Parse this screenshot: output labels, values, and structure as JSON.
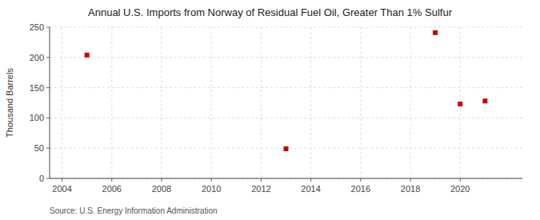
{
  "chart_data": {
    "type": "scatter",
    "title": "Annual U.S. Imports from Norway of Residual Fuel Oil, Greater Than 1% Sulfur",
    "ylabel": "Thousand Barrels",
    "annotations": [
      "Source: U.S. Energy Information Administration"
    ],
    "x": [
      2005,
      2013,
      2019,
      2020,
      2021
    ],
    "values": [
      204,
      49,
      241,
      123,
      128
    ],
    "color": "#cc0000",
    "marker": "square",
    "xlim": [
      2003.5,
      2022.5
    ],
    "ylim": [
      0,
      250
    ],
    "xticks": [
      2004,
      2006,
      2008,
      2010,
      2012,
      2014,
      2016,
      2018,
      2020
    ],
    "yticks": [
      0,
      50,
      100,
      150,
      200,
      250
    ],
    "grid": true
  }
}
